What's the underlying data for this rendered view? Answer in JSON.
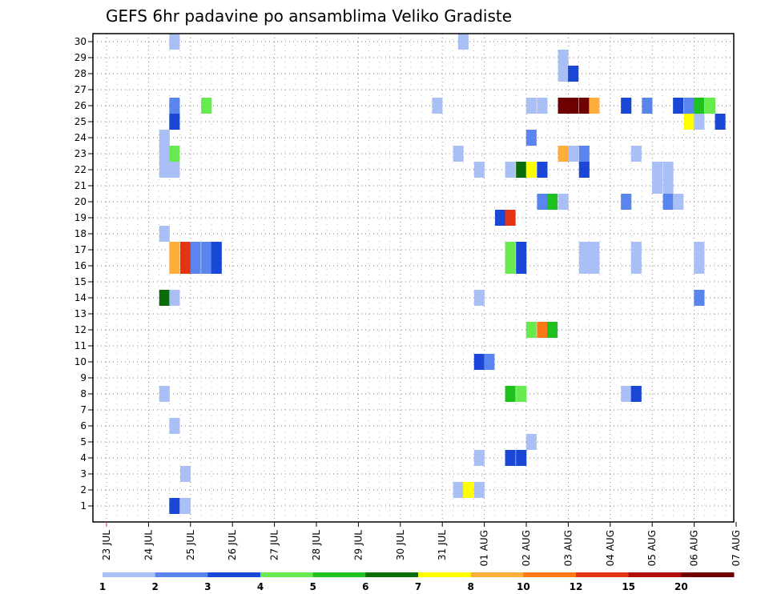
{
  "chart_data": {
    "type": "heatmap",
    "title": "GEFS 6hr padavine po ansamblima Veliko Gradiste",
    "xlabel": "",
    "ylabel": "",
    "x_tick_labels": [
      "23 JUL",
      "24 JUL",
      "25 JUL",
      "26 JUL",
      "27 JUL",
      "28 JUL",
      "29 JUL",
      "30 JUL",
      "31 JUL",
      "01 AUG",
      "02 AUG",
      "03 AUG",
      "04 AUG",
      "05 AUG",
      "06 AUG",
      "07 AUG"
    ],
    "y_tick_labels": [
      "1",
      "2",
      "3",
      "4",
      "5",
      "6",
      "7",
      "8",
      "9",
      "10",
      "11",
      "12",
      "13",
      "14",
      "15",
      "16",
      "17",
      "18",
      "19",
      "20",
      "21",
      "22",
      "23",
      "24",
      "25",
      "26",
      "27",
      "28",
      "29",
      "30"
    ],
    "x_range_days": [
      0,
      15
    ],
    "y_range": [
      0,
      30.5
    ],
    "grid": true,
    "legend_placement": "bottom",
    "legend": {
      "labels": [
        "1",
        "2",
        "3",
        "4",
        "5",
        "6",
        "7",
        "8",
        "10",
        "12",
        "15",
        "20"
      ],
      "colors": [
        "#aabff5",
        "#5a84ee",
        "#1a47d6",
        "#66ea4e",
        "#1ec21e",
        "#0a6d0a",
        "#ffff00",
        "#ffae3a",
        "#ff7818",
        "#e33416",
        "#b00c0c",
        "#6e0000"
      ]
    },
    "cells": [
      [
        30,
        1.62,
        0
      ],
      [
        30,
        8.5,
        0
      ],
      [
        29,
        10.88,
        0
      ],
      [
        28,
        10.88,
        0
      ],
      [
        28,
        11.12,
        2
      ],
      [
        26,
        1.62,
        1
      ],
      [
        26,
        2.38,
        3
      ],
      [
        26,
        7.88,
        0
      ],
      [
        26,
        10.12,
        0
      ],
      [
        26,
        10.38,
        0
      ],
      [
        26,
        11.12,
        11
      ],
      [
        26,
        11.38,
        11
      ],
      [
        26,
        10.88,
        11
      ],
      [
        26,
        11.62,
        7
      ],
      [
        26,
        12.38,
        2
      ],
      [
        26,
        12.88,
        1
      ],
      [
        26,
        13.62,
        2
      ],
      [
        26,
        13.88,
        1
      ],
      [
        26,
        14.12,
        4
      ],
      [
        26,
        14.38,
        3
      ],
      [
        25,
        1.62,
        2
      ],
      [
        25,
        13.88,
        6
      ],
      [
        25,
        14.12,
        0
      ],
      [
        25,
        14.62,
        2
      ],
      [
        24,
        1.38,
        0
      ],
      [
        24,
        10.12,
        1
      ],
      [
        23,
        1.38,
        0
      ],
      [
        23,
        1.62,
        3
      ],
      [
        23,
        8.38,
        0
      ],
      [
        23,
        10.88,
        7
      ],
      [
        23,
        11.12,
        0
      ],
      [
        23,
        11.38,
        1
      ],
      [
        23,
        12.62,
        0
      ],
      [
        22,
        1.38,
        0
      ],
      [
        22,
        1.62,
        0
      ],
      [
        22,
        8.88,
        0
      ],
      [
        22,
        9.62,
        0
      ],
      [
        22,
        9.88,
        5
      ],
      [
        22,
        10.12,
        6
      ],
      [
        22,
        10.38,
        2
      ],
      [
        22,
        11.38,
        2
      ],
      [
        22,
        13.12,
        0
      ],
      [
        22,
        13.38,
        0
      ],
      [
        21,
        13.12,
        0
      ],
      [
        21,
        13.38,
        0
      ],
      [
        20,
        10.38,
        1
      ],
      [
        20,
        10.62,
        4
      ],
      [
        20,
        10.88,
        0
      ],
      [
        20,
        12.38,
        1
      ],
      [
        20,
        13.38,
        1
      ],
      [
        20,
        13.62,
        0
      ],
      [
        19,
        9.38,
        2
      ],
      [
        19,
        9.62,
        9
      ],
      [
        18,
        1.38,
        0
      ],
      [
        17,
        1.62,
        7
      ],
      [
        17,
        1.88,
        9
      ],
      [
        17,
        2.12,
        1
      ],
      [
        17,
        2.38,
        1
      ],
      [
        17,
        2.62,
        2
      ],
      [
        17,
        9.62,
        3
      ],
      [
        17,
        9.88,
        2
      ],
      [
        17,
        11.38,
        0
      ],
      [
        17,
        11.62,
        0
      ],
      [
        17,
        12.62,
        0
      ],
      [
        17,
        14.12,
        0
      ],
      [
        16,
        1.62,
        7
      ],
      [
        16,
        1.88,
        9
      ],
      [
        16,
        2.12,
        1
      ],
      [
        16,
        2.38,
        1
      ],
      [
        16,
        2.62,
        2
      ],
      [
        16,
        9.62,
        3
      ],
      [
        16,
        9.88,
        2
      ],
      [
        16,
        11.38,
        0
      ],
      [
        16,
        11.62,
        0
      ],
      [
        16,
        12.62,
        0
      ],
      [
        16,
        14.12,
        0
      ],
      [
        14,
        1.38,
        5
      ],
      [
        14,
        1.62,
        0
      ],
      [
        14,
        8.88,
        0
      ],
      [
        14,
        14.12,
        1
      ],
      [
        12,
        10.12,
        3
      ],
      [
        12,
        10.38,
        8
      ],
      [
        12,
        10.62,
        4
      ],
      [
        10,
        8.88,
        2
      ],
      [
        10,
        9.12,
        1
      ],
      [
        8,
        1.38,
        0
      ],
      [
        8,
        9.62,
        4
      ],
      [
        8,
        9.88,
        3
      ],
      [
        8,
        12.38,
        0
      ],
      [
        8,
        12.62,
        2
      ],
      [
        6,
        1.62,
        0
      ],
      [
        5,
        10.12,
        0
      ],
      [
        4,
        8.88,
        0
      ],
      [
        4,
        9.62,
        2
      ],
      [
        4,
        9.88,
        2
      ],
      [
        3,
        1.88,
        0
      ],
      [
        2,
        8.38,
        0
      ],
      [
        2,
        8.62,
        6
      ],
      [
        2,
        8.88,
        0
      ],
      [
        1,
        1.62,
        2
      ],
      [
        1,
        1.88,
        0
      ]
    ]
  }
}
